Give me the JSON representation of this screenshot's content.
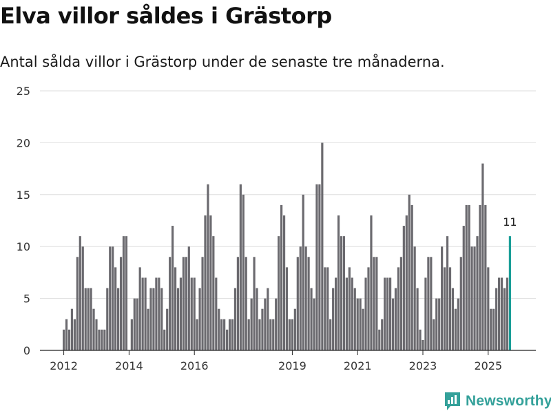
{
  "chart_data": {
    "type": "bar",
    "title": "Elva villor såldes i Grästorp",
    "subtitle": "Antal sålda villor i Grästorp under de senaste tre månaderna.",
    "xlabel": "",
    "ylabel": "",
    "ylim": [
      0,
      25
    ],
    "grid": true,
    "y_ticks": [
      0,
      5,
      10,
      15,
      20,
      25
    ],
    "x_tick_labels": [
      "2012",
      "2014",
      "2016",
      "2019",
      "2021",
      "2023",
      "2025"
    ],
    "x_tick_bar_index": [
      0,
      24,
      48,
      84,
      108,
      132,
      156
    ],
    "values": [
      2,
      3,
      2,
      4,
      3,
      9,
      11,
      10,
      6,
      6,
      6,
      4,
      3,
      2,
      2,
      2,
      6,
      10,
      10,
      8,
      6,
      9,
      11,
      11,
      0,
      3,
      5,
      5,
      8,
      7,
      7,
      4,
      6,
      6,
      7,
      7,
      6,
      2,
      4,
      9,
      12,
      8,
      6,
      7,
      9,
      9,
      10,
      7,
      7,
      3,
      6,
      9,
      13,
      16,
      13,
      11,
      7,
      4,
      3,
      3,
      2,
      3,
      3,
      6,
      9,
      16,
      15,
      9,
      3,
      5,
      9,
      6,
      3,
      4,
      5,
      6,
      3,
      3,
      5,
      11,
      14,
      13,
      8,
      3,
      3,
      4,
      9,
      10,
      15,
      10,
      9,
      6,
      5,
      16,
      16,
      20,
      8,
      8,
      3,
      6,
      7,
      13,
      11,
      11,
      7,
      8,
      7,
      6,
      5,
      5,
      4,
      7,
      8,
      13,
      9,
      9,
      2,
      3,
      7,
      7,
      7,
      5,
      6,
      8,
      9,
      12,
      13,
      15,
      14,
      10,
      6,
      2,
      1,
      7,
      9,
      9,
      3,
      5,
      5,
      10,
      8,
      11,
      8,
      6,
      4,
      5,
      9,
      12,
      14,
      14,
      10,
      10,
      11,
      14,
      18,
      14,
      8,
      4,
      4,
      6,
      7,
      7,
      6,
      7,
      11
    ],
    "highlight_index": 164,
    "highlight_label": "11",
    "colors": {
      "bar": "#6b6a6f",
      "highlight": "#1a9e98",
      "grid": "#dedede",
      "axis": "#222222"
    }
  },
  "branding": {
    "name": "Newsworthy",
    "icon": "newsworthy-logo-icon",
    "color": "#34a19a"
  }
}
